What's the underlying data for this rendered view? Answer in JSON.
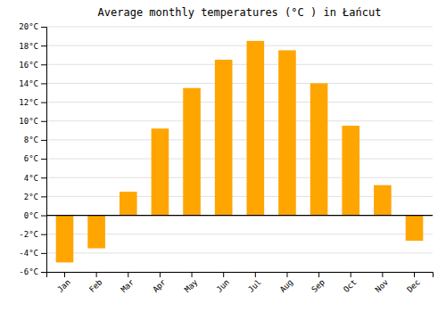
{
  "chart_data": {
    "type": "bar",
    "title": "Average monthly temperatures (°C ) in Łańcut",
    "categories": [
      "Jan",
      "Feb",
      "Mar",
      "Apr",
      "May",
      "Jun",
      "Jul",
      "Aug",
      "Sep",
      "Oct",
      "Nov",
      "Dec"
    ],
    "values": [
      -5.0,
      -3.5,
      2.5,
      9.2,
      13.5,
      16.5,
      18.5,
      17.5,
      14.0,
      9.5,
      3.2,
      -2.7
    ],
    "color": "#FFA500",
    "ylim": [
      -6,
      20
    ],
    "yticks": [
      {
        "value": -6,
        "label": "-6°C"
      },
      {
        "value": -4,
        "label": "-4°C"
      },
      {
        "value": -2,
        "label": "-2°C"
      },
      {
        "value": 0,
        "label": "0°C"
      },
      {
        "value": 2,
        "label": "2°C"
      },
      {
        "value": 4,
        "label": "4°C"
      },
      {
        "value": 6,
        "label": "6°C"
      },
      {
        "value": 8,
        "label": "8°C"
      },
      {
        "value": 10,
        "label": "10°C"
      },
      {
        "value": 12,
        "label": "12°C"
      },
      {
        "value": 14,
        "label": "14°C"
      },
      {
        "value": 16,
        "label": "16°C"
      },
      {
        "value": 18,
        "label": "18°C"
      },
      {
        "value": 20,
        "label": "20°C"
      }
    ],
    "grid": true
  }
}
